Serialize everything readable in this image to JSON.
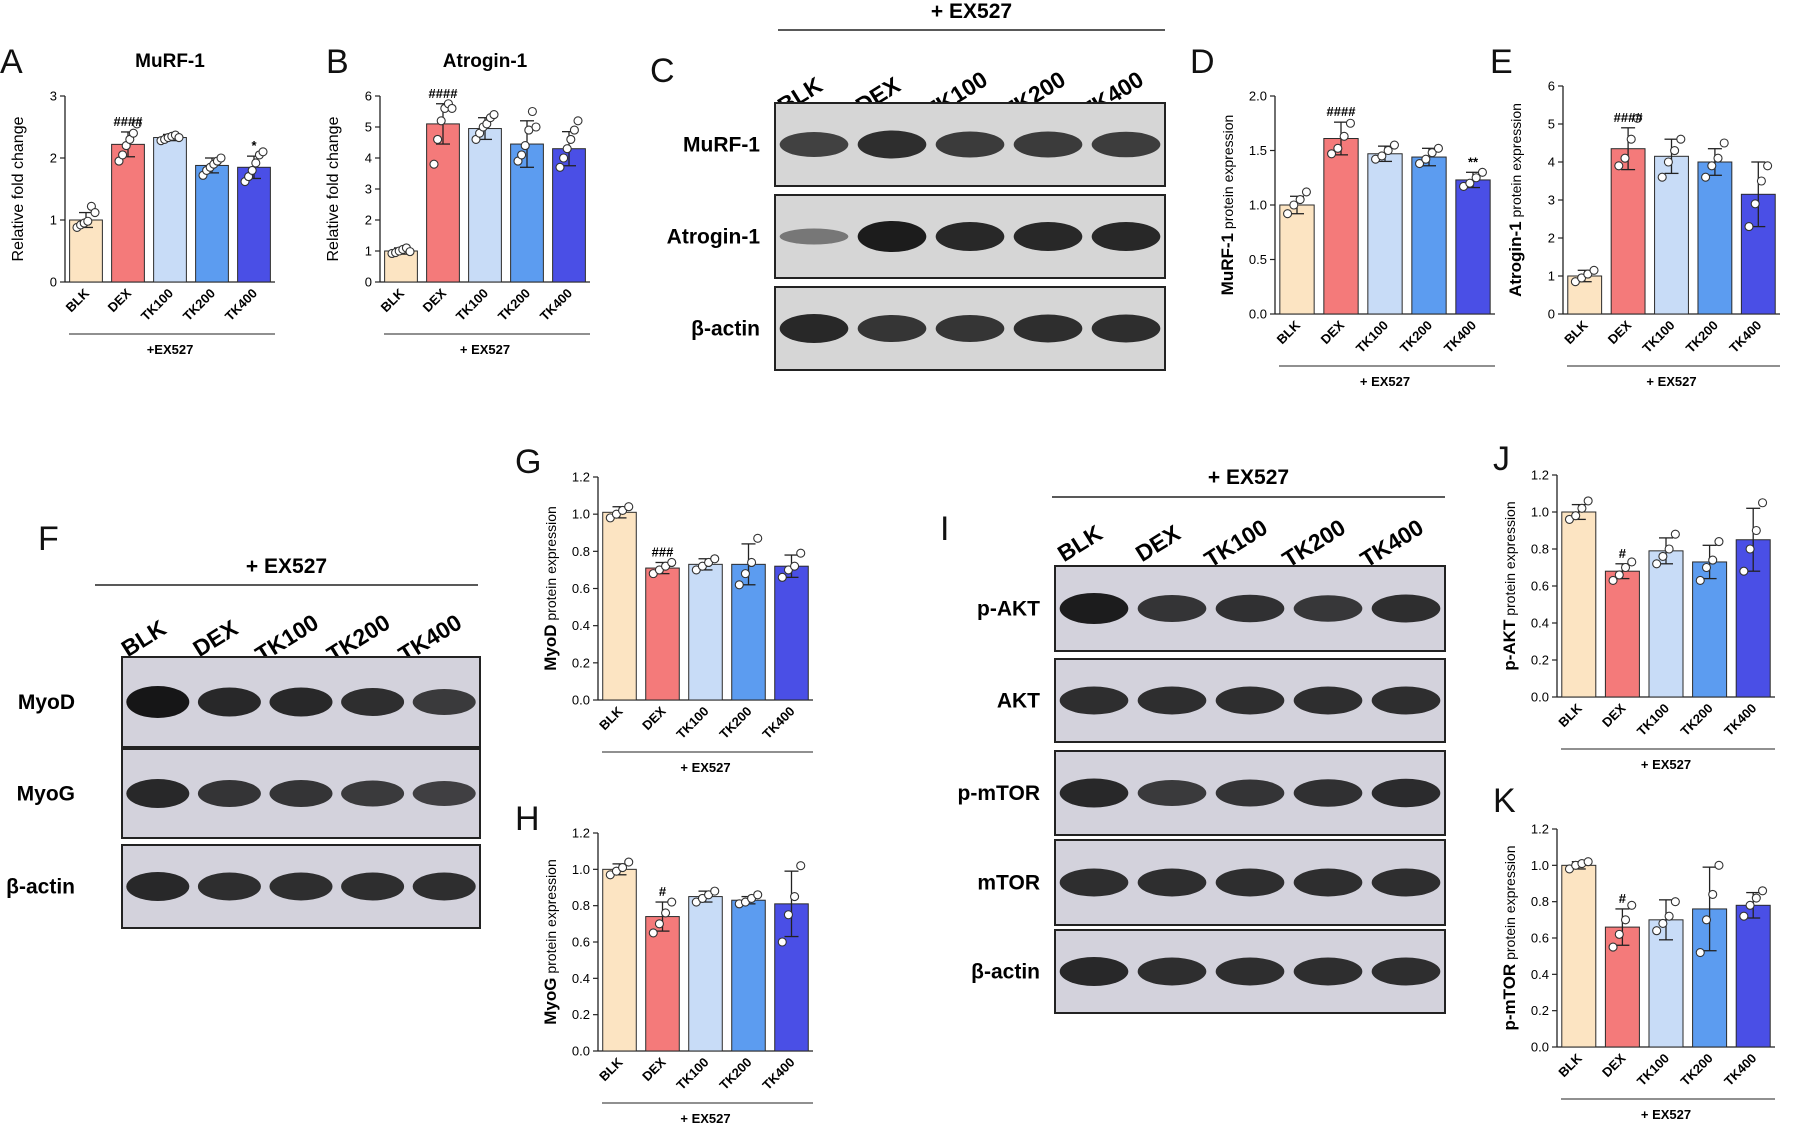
{
  "colors": [
    "#fce4c2",
    "#f47a7a",
    "#c8dcf7",
    "#5c9cf0",
    "#4a4fe6"
  ],
  "panel_letters": [
    "A",
    "B",
    "C",
    "D",
    "E",
    "F",
    "G",
    "H",
    "I",
    "J",
    "K"
  ],
  "blots": {
    "C": {
      "treatment": "+ EX527",
      "lanes": [
        "BLK",
        "DEX",
        "TK100",
        "TK200",
        "TK400"
      ],
      "rows": [
        "MuRF-1",
        "Atrogin-1",
        "β-actin"
      ],
      "band_intensity": [
        [
          0.65,
          0.8,
          0.7,
          0.7,
          0.68
        ],
        [
          0.2,
          0.95,
          0.85,
          0.85,
          0.85
        ],
        [
          0.85,
          0.75,
          0.75,
          0.8,
          0.8
        ]
      ]
    },
    "F": {
      "treatment": "+ EX527",
      "lanes": [
        "BLK",
        "DEX",
        "TK100",
        "TK200",
        "TK400"
      ],
      "rows": [
        "MyoD",
        "MyoG",
        "β-actin"
      ],
      "band_intensity": [
        [
          1.0,
          0.85,
          0.85,
          0.8,
          0.7
        ],
        [
          0.85,
          0.75,
          0.75,
          0.7,
          0.65
        ],
        [
          0.85,
          0.8,
          0.8,
          0.8,
          0.8
        ]
      ]
    },
    "I": {
      "treatment": "+ EX527",
      "lanes": [
        "BLK",
        "DEX",
        "TK100",
        "TK200",
        "TK400"
      ],
      "rows": [
        "p-AKT",
        "AKT",
        "p-mTOR",
        "mTOR",
        "β-actin"
      ],
      "band_intensity": [
        [
          0.95,
          0.75,
          0.78,
          0.72,
          0.8
        ],
        [
          0.8,
          0.8,
          0.8,
          0.8,
          0.8
        ],
        [
          0.85,
          0.7,
          0.75,
          0.78,
          0.82
        ],
        [
          0.8,
          0.8,
          0.8,
          0.8,
          0.8
        ],
        [
          0.85,
          0.8,
          0.8,
          0.8,
          0.8
        ]
      ]
    }
  },
  "chart_data": [
    {
      "id": "A",
      "type": "bar",
      "title": "MuRF-1",
      "ylabel": "Relative fold change",
      "ylim": [
        0,
        3
      ],
      "yticks": [
        0,
        1,
        2,
        3
      ],
      "categories": [
        "BLK",
        "DEX",
        "TK100",
        "TK200",
        "TK400"
      ],
      "treatment": "+EX527",
      "values": [
        1.0,
        2.22,
        2.33,
        1.88,
        1.85
      ],
      "errors": [
        0.12,
        0.2,
        0.05,
        0.12,
        0.18
      ],
      "points": [
        [
          0.88,
          0.92,
          0.95,
          0.98,
          1.22,
          1.12
        ],
        [
          1.95,
          2.05,
          2.2,
          2.3,
          2.4,
          2.55
        ],
        [
          2.28,
          2.3,
          2.33,
          2.35,
          2.37,
          2.33
        ],
        [
          1.72,
          1.8,
          1.85,
          1.9,
          1.95,
          2.0
        ],
        [
          1.62,
          1.7,
          1.8,
          1.92,
          2.05,
          2.1
        ]
      ],
      "significance": [
        "",
        "####",
        "",
        "",
        "*"
      ]
    },
    {
      "id": "B",
      "type": "bar",
      "title": "Atrogin-1",
      "ylabel": "Relative fold change",
      "ylim": [
        0,
        6
      ],
      "yticks": [
        0,
        1,
        2,
        3,
        4,
        5,
        6
      ],
      "categories": [
        "BLK",
        "DEX",
        "TK100",
        "TK200",
        "TK400"
      ],
      "treatment": "+ EX527",
      "values": [
        1.0,
        5.1,
        4.95,
        4.45,
        4.3
      ],
      "errors": [
        0.1,
        0.65,
        0.35,
        0.75,
        0.55
      ],
      "points": [
        [
          0.92,
          0.95,
          1.0,
          1.05,
          1.1,
          0.98
        ],
        [
          3.8,
          4.6,
          5.2,
          5.6,
          5.75,
          5.6
        ],
        [
          4.6,
          4.8,
          5.0,
          5.1,
          5.3,
          5.4
        ],
        [
          3.9,
          4.1,
          4.4,
          4.9,
          5.5,
          5.0
        ],
        [
          3.7,
          4.0,
          4.3,
          4.6,
          4.9,
          5.2
        ]
      ],
      "significance": [
        "",
        "####",
        "",
        "",
        ""
      ]
    },
    {
      "id": "D",
      "type": "bar",
      "title": "",
      "ylabel": "MuRF-1 protein expression",
      "ylim": [
        0,
        2.0
      ],
      "yticks": [
        0.0,
        0.5,
        1.0,
        1.5,
        2.0
      ],
      "categories": [
        "BLK",
        "DEX",
        "TK100",
        "TK200",
        "TK400"
      ],
      "treatment": "+ EX527",
      "values": [
        1.0,
        1.61,
        1.47,
        1.44,
        1.23
      ],
      "errors": [
        0.08,
        0.15,
        0.07,
        0.08,
        0.07
      ],
      "points": [
        [
          0.92,
          1.0,
          1.05,
          1.12
        ],
        [
          1.47,
          1.52,
          1.63,
          1.75
        ],
        [
          1.42,
          1.45,
          1.5,
          1.55
        ],
        [
          1.38,
          1.42,
          1.48,
          1.52
        ],
        [
          1.17,
          1.2,
          1.25,
          1.3
        ]
      ],
      "significance": [
        "",
        "####",
        "",
        "",
        "**"
      ]
    },
    {
      "id": "E",
      "type": "bar",
      "title": "",
      "ylabel": "Atrogin-1 protein expression",
      "ylim": [
        0,
        6
      ],
      "yticks": [
        0,
        1,
        2,
        3,
        4,
        5,
        6
      ],
      "categories": [
        "BLK",
        "DEX",
        "TK100",
        "TK200",
        "TK400"
      ],
      "treatment": "+ EX527",
      "values": [
        1.0,
        4.35,
        4.15,
        4.0,
        3.15
      ],
      "errors": [
        0.15,
        0.55,
        0.45,
        0.35,
        0.85
      ],
      "points": [
        [
          0.85,
          0.95,
          1.05,
          1.15
        ],
        [
          3.9,
          4.1,
          4.6,
          5.15
        ],
        [
          3.6,
          4.0,
          4.3,
          4.6
        ],
        [
          3.6,
          3.9,
          4.1,
          4.5
        ],
        [
          2.3,
          2.9,
          3.5,
          3.9
        ]
      ],
      "significance": [
        "",
        "####",
        "",
        "",
        ""
      ]
    },
    {
      "id": "G",
      "type": "bar",
      "title": "",
      "ylabel": "MyoD protein expression",
      "ylim": [
        0,
        1.2
      ],
      "yticks": [
        0.0,
        0.2,
        0.4,
        0.6,
        0.8,
        1.0,
        1.2
      ],
      "categories": [
        "BLK",
        "DEX",
        "TK100",
        "TK200",
        "TK400"
      ],
      "treatment": "+ EX527",
      "values": [
        1.01,
        0.71,
        0.73,
        0.73,
        0.72
      ],
      "errors": [
        0.03,
        0.03,
        0.03,
        0.11,
        0.06
      ],
      "points": [
        [
          0.98,
          1.0,
          1.02,
          1.04
        ],
        [
          0.68,
          0.7,
          0.72,
          0.74
        ],
        [
          0.7,
          0.72,
          0.74,
          0.76
        ],
        [
          0.62,
          0.68,
          0.74,
          0.87
        ],
        [
          0.66,
          0.7,
          0.72,
          0.79
        ]
      ],
      "significance": [
        "",
        "###",
        "",
        "",
        ""
      ]
    },
    {
      "id": "H",
      "type": "bar",
      "title": "",
      "ylabel": "MyoG protein expression",
      "ylim": [
        0,
        1.2
      ],
      "yticks": [
        0.0,
        0.2,
        0.4,
        0.6,
        0.8,
        1.0,
        1.2
      ],
      "categories": [
        "BLK",
        "DEX",
        "TK100",
        "TK200",
        "TK400"
      ],
      "treatment": "+ EX527",
      "values": [
        1.0,
        0.74,
        0.85,
        0.83,
        0.81
      ],
      "errors": [
        0.03,
        0.08,
        0.03,
        0.02,
        0.18
      ],
      "points": [
        [
          0.97,
          0.99,
          1.01,
          1.04
        ],
        [
          0.65,
          0.7,
          0.76,
          0.82
        ],
        [
          0.82,
          0.84,
          0.86,
          0.88
        ],
        [
          0.81,
          0.82,
          0.84,
          0.86
        ],
        [
          0.6,
          0.75,
          0.85,
          1.02
        ]
      ],
      "significance": [
        "",
        "#",
        "",
        "",
        ""
      ]
    },
    {
      "id": "J",
      "type": "bar",
      "title": "",
      "ylabel": "p-AKT protein expression",
      "ylim": [
        0,
        1.2
      ],
      "yticks": [
        0.0,
        0.2,
        0.4,
        0.6,
        0.8,
        1.0,
        1.2
      ],
      "categories": [
        "BLK",
        "DEX",
        "TK100",
        "TK200",
        "TK400"
      ],
      "treatment": "+ EX527",
      "values": [
        1.0,
        0.68,
        0.79,
        0.73,
        0.85
      ],
      "errors": [
        0.04,
        0.04,
        0.07,
        0.09,
        0.17
      ],
      "points": [
        [
          0.96,
          0.98,
          1.02,
          1.06
        ],
        [
          0.63,
          0.66,
          0.7,
          0.73
        ],
        [
          0.72,
          0.76,
          0.8,
          0.88
        ],
        [
          0.63,
          0.7,
          0.74,
          0.84
        ],
        [
          0.68,
          0.8,
          0.9,
          1.05
        ]
      ],
      "significance": [
        "",
        "#",
        "",
        "",
        ""
      ]
    },
    {
      "id": "K",
      "type": "bar",
      "title": "",
      "ylabel": "p-mTOR protein expression",
      "ylim": [
        0,
        1.2
      ],
      "yticks": [
        0.0,
        0.2,
        0.4,
        0.6,
        0.8,
        1.0,
        1.2
      ],
      "categories": [
        "BLK",
        "DEX",
        "TK100",
        "TK200",
        "TK400"
      ],
      "treatment": "+ EX527",
      "values": [
        1.0,
        0.66,
        0.7,
        0.76,
        0.78
      ],
      "errors": [
        0.02,
        0.1,
        0.11,
        0.23,
        0.07
      ],
      "points": [
        [
          0.98,
          1.0,
          1.01,
          1.02
        ],
        [
          0.55,
          0.62,
          0.7,
          0.78
        ],
        [
          0.64,
          0.68,
          0.72,
          0.8
        ],
        [
          0.52,
          0.7,
          0.84,
          1.0
        ],
        [
          0.72,
          0.78,
          0.82,
          0.86
        ]
      ],
      "significance": [
        "",
        "#",
        "",
        "",
        ""
      ]
    }
  ]
}
